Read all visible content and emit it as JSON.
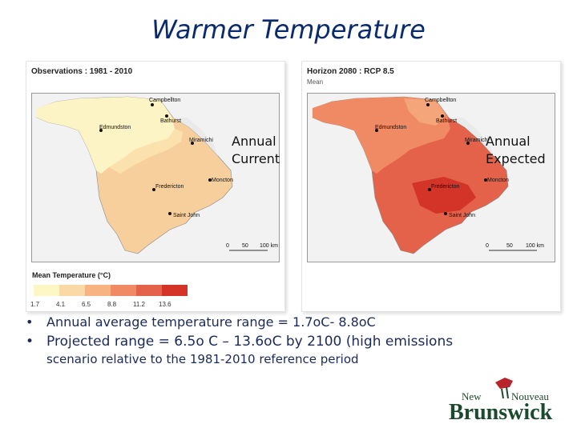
{
  "title": "Warmer Temperature",
  "left_panel": {
    "title": "Observations : 1981 - 2010",
    "overlay": [
      "Annual",
      "Current"
    ],
    "cities": [
      "Campbellton",
      "Bathurst",
      "Edmundston",
      "Miramichi",
      "Moncton",
      "Fredericton",
      "Saint John"
    ],
    "scale": [
      "0",
      "50",
      "100 km"
    ]
  },
  "right_panel": {
    "title": "Horizon 2080 : RCP 8.5",
    "subtitle": "Mean",
    "overlay": [
      "Annual",
      "Expected"
    ],
    "cities": [
      "Campbellton",
      "Bathurst",
      "Edmundston",
      "Miramichi",
      "Moncton",
      "Fredericton",
      "Saint John"
    ],
    "scale": [
      "0",
      "50",
      "100 km"
    ]
  },
  "legend": {
    "title": "Mean Temperature (°C)",
    "ticks": [
      "1.7",
      "4.1",
      "6.5",
      "8.8",
      "11.2",
      "13.6"
    ],
    "colors": [
      "#fdf6c5",
      "#fbd9a6",
      "#f7b482",
      "#f08a64",
      "#e4624a",
      "#d43328"
    ]
  },
  "bullets": [
    {
      "dot": "•",
      "text": "Annual average temperature range = 1.7oC- 8.8oC"
    },
    {
      "dot": "•",
      "text": "Projected range = 6.5o C – 13.6oC by 2100 (high emissions",
      "cont": "scenario relative to the 1981-2010 reference period"
    }
  ],
  "logo": {
    "line1": "New",
    "line1b": "Nouveau",
    "line2": "Brunswick"
  }
}
